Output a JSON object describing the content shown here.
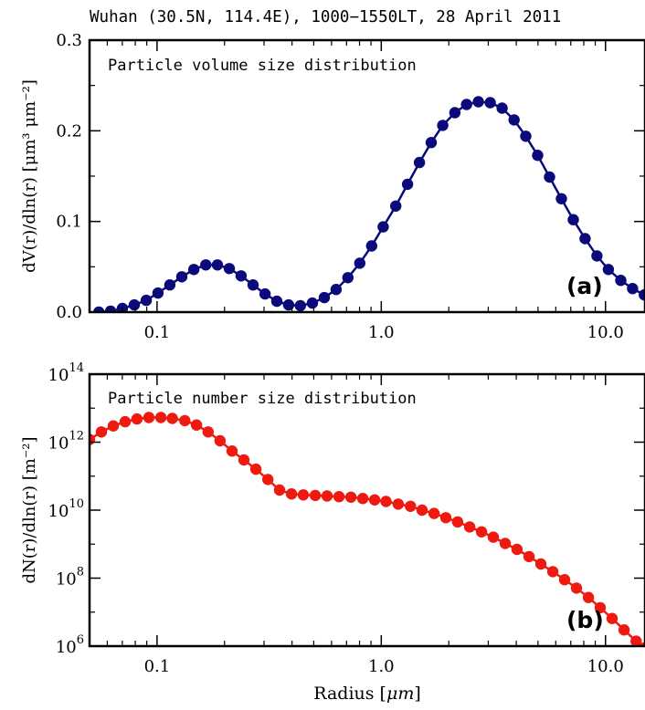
{
  "title": "Wuhan (30.5N, 114.4E), 1000−1550LT, 28 April 2011",
  "xlabel_prefix": "Radius [",
  "xlabel_unit": "μm",
  "xlabel_suffix": "]",
  "colors": {
    "volume": "#0a0a7a",
    "number": "#ee1a10"
  },
  "panels": {
    "a": {
      "letter": "(a)",
      "caption": "Particle volume size distribution",
      "ylabel": "dV(r)/dln(r) [μm³ μm⁻²]"
    },
    "b": {
      "letter": "(b)",
      "caption": "Particle number size distribution",
      "ylabel": "dN(r)/dln(r) [m⁻²]"
    }
  },
  "chart_data": [
    {
      "type": "line",
      "title": "Particle volume size distribution",
      "xlabel": "Radius [μm]",
      "ylabel": "dV(r)/dln(r) [μm³ μm⁻²]",
      "xscale": "log",
      "xlim": [
        0.05,
        15
      ],
      "ylim": [
        0,
        0.3
      ],
      "xticks": [
        0.1,
        1.0,
        10.0
      ],
      "xtick_labels": [
        "0.1",
        "1.0",
        "10.0"
      ],
      "yticks": [
        0.0,
        0.1,
        0.2,
        0.3
      ],
      "ytick_labels": [
        "0.0",
        "0.1",
        "0.2",
        "0.3"
      ],
      "grid": false,
      "series": [
        {
          "color": "#0a0a7a",
          "x": [
            0.055,
            0.0621,
            0.0701,
            0.0792,
            0.0895,
            0.101,
            0.114,
            0.129,
            0.146,
            0.165,
            0.186,
            0.21,
            0.237,
            0.268,
            0.303,
            0.342,
            0.386,
            0.436,
            0.493,
            0.557,
            0.629,
            0.71,
            0.802,
            0.906,
            1.02,
            1.16,
            1.31,
            1.48,
            1.67,
            1.88,
            2.13,
            2.4,
            2.71,
            3.06,
            3.46,
            3.91,
            4.41,
            4.98,
            5.63,
            6.36,
            7.18,
            8.11,
            9.16,
            10.3,
            11.7,
            13.2,
            14.9
          ],
          "y": [
            0.0,
            0.001,
            0.004,
            0.008,
            0.013,
            0.021,
            0.03,
            0.039,
            0.047,
            0.052,
            0.052,
            0.048,
            0.04,
            0.03,
            0.02,
            0.012,
            0.008,
            0.007,
            0.01,
            0.016,
            0.025,
            0.038,
            0.054,
            0.073,
            0.094,
            0.117,
            0.141,
            0.165,
            0.187,
            0.206,
            0.22,
            0.229,
            0.232,
            0.231,
            0.225,
            0.212,
            0.194,
            0.173,
            0.149,
            0.125,
            0.102,
            0.081,
            0.062,
            0.047,
            0.035,
            0.026,
            0.019
          ]
        }
      ]
    },
    {
      "type": "line",
      "title": "Particle number size distribution",
      "xlabel": "Radius [μm]",
      "ylabel": "dN(r)/dln(r) [m⁻²]",
      "xscale": "log",
      "yscale": "log",
      "xlim": [
        0.05,
        15
      ],
      "ylim": [
        1000000.0,
        100000000000000.0
      ],
      "xticks": [
        0.1,
        1.0,
        10.0
      ],
      "xtick_labels": [
        "0.1",
        "1.0",
        "10.0"
      ],
      "yticks": [
        1000000.0,
        100000000.0,
        10000000000.0,
        1000000000000.0,
        100000000000000.0
      ],
      "ytick_exponents": [
        "6",
        "8",
        "10",
        "12",
        "14"
      ],
      "grid": false,
      "series": [
        {
          "color": "#ee1a10",
          "x": [
            0.05,
            0.0565,
            0.0638,
            0.0721,
            0.0814,
            0.092,
            0.104,
            0.117,
            0.133,
            0.15,
            0.169,
            0.191,
            0.216,
            0.244,
            0.276,
            0.312,
            0.352,
            0.398,
            0.449,
            0.508,
            0.573,
            0.648,
            0.732,
            0.827,
            0.934,
            1.05,
            1.19,
            1.35,
            1.52,
            1.72,
            1.94,
            2.19,
            2.48,
            2.8,
            3.16,
            3.57,
            4.03,
            4.56,
            5.15,
            5.82,
            6.57,
            7.42,
            8.39,
            9.47,
            10.7,
            12.1,
            13.7,
            15.0
          ],
          "y": [
            1200000000000.0,
            2000000000000.0,
            3000000000000.0,
            4000000000000.0,
            4800000000000.0,
            5300000000000.0,
            5300000000000.0,
            5000000000000.0,
            4300000000000.0,
            3200000000000.0,
            2000000000000.0,
            1100000000000.0,
            550000000000.0,
            300000000000.0,
            160000000000.0,
            80000000000.0,
            39000000000.0,
            30000000000.0,
            28000000000.0,
            27000000000.0,
            26000000000.0,
            25000000000.0,
            24000000000.0,
            22000000000.0,
            20000000000.0,
            18000000000.0,
            15000000000.0,
            13000000000.0,
            10000000000.0,
            8000000000.0,
            6000000000.0,
            4500000000.0,
            3200000000.0,
            2300000000.0,
            1600000000.0,
            1050000000.0,
            700000000.0,
            430000000.0,
            260000000.0,
            155000000.0,
            90000000.0,
            51000000.0,
            27000000.0,
            13500000.0,
            6500000.0,
            3000000.0,
            1400000.0,
            900000.0
          ]
        }
      ]
    }
  ]
}
